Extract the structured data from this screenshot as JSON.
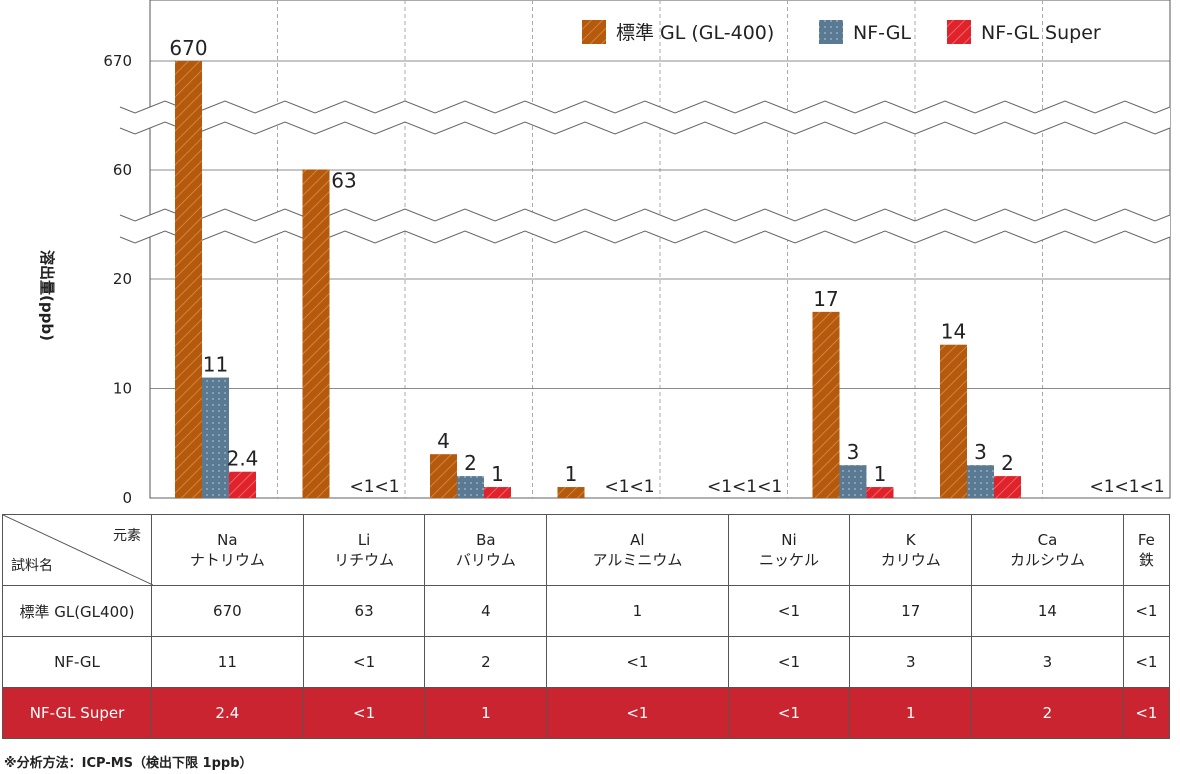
{
  "y_axis_label": "溶出量(ppb)",
  "footnote": "※分析方法：ICP-MS（検出下限 1ppb）",
  "colors": {
    "standard": "#b5590d",
    "nf": "#5a7a93",
    "super": "#e0222b",
    "highlight_row": "#c9242f"
  },
  "chart_data": {
    "type": "bar",
    "categories": [
      "Na",
      "Li",
      "Ba",
      "Al",
      "Ni",
      "K",
      "Ca",
      "Fe"
    ],
    "ylabel": "溶出量(ppb)",
    "ytick_labels": [
      "0",
      "10",
      "20",
      "60",
      "670"
    ],
    "axis_breaks": true,
    "grid": true,
    "legend_position": "top-right",
    "series": [
      {
        "name": "標準 GL (GL-400)",
        "values": [
          670,
          63,
          4,
          1,
          null,
          17,
          14,
          null
        ],
        "labels": [
          "670",
          "63",
          "4",
          "1",
          "<1",
          "17",
          "14",
          "<1"
        ]
      },
      {
        "name": "NF-GL",
        "values": [
          11,
          null,
          2,
          null,
          null,
          3,
          3,
          null
        ],
        "labels": [
          "11",
          "<1",
          "2",
          "<1",
          "<1",
          "3",
          "3",
          "<1"
        ]
      },
      {
        "name": "NF-GL Super",
        "values": [
          2.4,
          null,
          1,
          null,
          null,
          1,
          2,
          null
        ],
        "labels": [
          "2.4",
          "<1",
          "1",
          "<1",
          "<1",
          "1",
          "2",
          "<1"
        ]
      }
    ]
  },
  "table": {
    "corner_top": "元素",
    "corner_bottom": "試料名",
    "columns": [
      {
        "symbol": "Na",
        "name": "ナトリウム"
      },
      {
        "symbol": "Li",
        "name": "リチウム"
      },
      {
        "symbol": "Ba",
        "name": "バリウム"
      },
      {
        "symbol": "Al",
        "name": "アルミニウム"
      },
      {
        "symbol": "Ni",
        "name": "ニッケル"
      },
      {
        "symbol": "K",
        "name": "カリウム"
      },
      {
        "symbol": "Ca",
        "name": "カルシウム"
      },
      {
        "symbol": "Fe",
        "name": "鉄"
      }
    ],
    "rows": [
      {
        "name": "標準 GL(GL400)",
        "cells": [
          "670",
          "63",
          "4",
          "1",
          "<1",
          "17",
          "14",
          "<1"
        ]
      },
      {
        "name": "NF-GL",
        "cells": [
          "11",
          "<1",
          "2",
          "<1",
          "<1",
          "3",
          "3",
          "<1"
        ]
      },
      {
        "name": "NF-GL Super",
        "cells": [
          "2.4",
          "<1",
          "1",
          "<1",
          "<1",
          "1",
          "2",
          "<1"
        ]
      }
    ]
  }
}
